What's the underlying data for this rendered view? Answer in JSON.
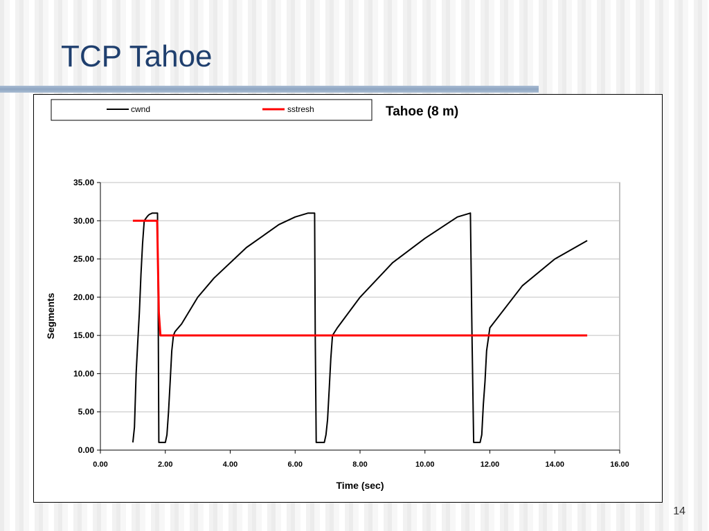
{
  "slide": {
    "title": "TCP Tahoe",
    "page_number": "14"
  },
  "colors": {
    "title": "#1f3f6e",
    "cwnd": "#000000",
    "sstresh": "#ff0000",
    "grid": "#c0c0c0"
  },
  "chart_data": {
    "type": "line",
    "title": "Tahoe (8 m)",
    "xlabel": "Time (sec)",
    "ylabel": "Segments",
    "xlim": [
      0,
      16
    ],
    "ylim": [
      0,
      35
    ],
    "x_ticks": [
      "0.00",
      "2.00",
      "4.00",
      "6.00",
      "8.00",
      "10.00",
      "12.00",
      "14.00",
      "16.00"
    ],
    "y_ticks": [
      "0.00",
      "5.00",
      "10.00",
      "15.00",
      "20.00",
      "25.00",
      "30.00",
      "35.00"
    ],
    "grid": "horizontal",
    "legend_position": "top",
    "series": [
      {
        "name": "cwnd",
        "color": "#000000",
        "x": [
          1.0,
          1.05,
          1.1,
          1.15,
          1.2,
          1.25,
          1.3,
          1.35,
          1.4,
          1.45,
          1.5,
          1.6,
          1.7,
          1.76,
          1.78,
          1.8,
          1.9,
          2.0,
          2.05,
          2.1,
          2.15,
          2.2,
          2.25,
          2.3,
          2.5,
          3.0,
          3.5,
          4.0,
          4.5,
          5.0,
          5.5,
          6.0,
          6.4,
          6.6,
          6.62,
          6.65,
          6.7,
          6.8,
          6.9,
          6.95,
          7.0,
          7.05,
          7.1,
          7.15,
          7.3,
          8.0,
          9.0,
          10.0,
          11.0,
          11.4,
          11.45,
          11.5,
          11.55,
          11.6,
          11.7,
          11.75,
          11.8,
          11.85,
          11.9,
          12.0,
          13.0,
          14.0,
          15.0
        ],
        "values": [
          1.0,
          3.0,
          10.0,
          14.0,
          18.0,
          23.0,
          27.0,
          30.0,
          30.3,
          30.6,
          30.8,
          31.0,
          31.0,
          31.0,
          20.0,
          1.0,
          1.0,
          1.0,
          2.0,
          5.0,
          9.0,
          13.0,
          15.0,
          15.5,
          16.5,
          20.0,
          22.5,
          24.5,
          26.5,
          28.0,
          29.5,
          30.5,
          31.0,
          31.0,
          15.0,
          1.0,
          1.0,
          1.0,
          1.0,
          2.0,
          4.0,
          8.0,
          12.0,
          15.0,
          16.0,
          20.0,
          24.5,
          27.7,
          30.5,
          31.0,
          15.0,
          1.0,
          1.0,
          1.0,
          1.0,
          2.0,
          6.0,
          9.0,
          13.0,
          16.0,
          21.5,
          25.0,
          27.4
        ]
      },
      {
        "name": "sstresh",
        "color": "#ff0000",
        "x": [
          1.0,
          1.75,
          1.77,
          1.8,
          1.85,
          15.0
        ],
        "values": [
          30.0,
          30.0,
          25.0,
          18.0,
          15.0,
          15.0
        ]
      }
    ]
  }
}
